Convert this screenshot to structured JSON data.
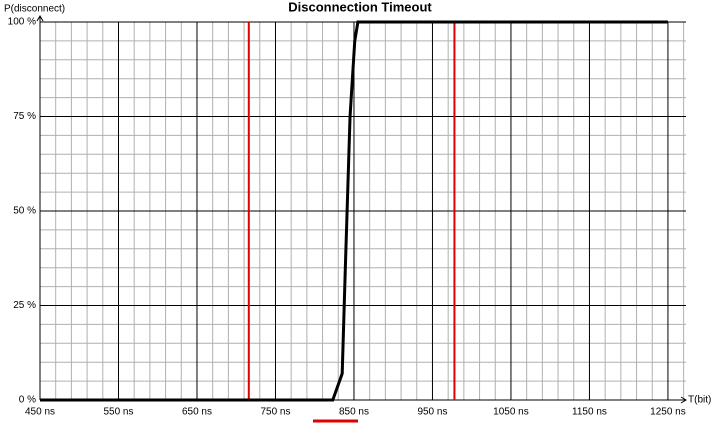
{
  "chart_data": {
    "type": "line",
    "title": "Disconnection Timeout",
    "y_label": "P(disconnect)",
    "x_label": "T(bit)",
    "x": [
      450,
      823,
      835,
      839,
      845,
      851,
      855,
      1250
    ],
    "series": [
      {
        "name": "P(disconnect)",
        "color": "#000000",
        "values": [
          0,
          0,
          7,
          35,
          75,
          95,
          100,
          100
        ]
      }
    ],
    "markers": [
      {
        "x": 716,
        "color": "#e00000"
      },
      {
        "x": 978,
        "color": "#e00000"
      }
    ],
    "xlim": [
      450,
      1273
    ],
    "ylim": [
      0,
      100
    ],
    "xticks": [
      {
        "value": 450,
        "label": "450 ns"
      },
      {
        "value": 550,
        "label": "550 ns"
      },
      {
        "value": 650,
        "label": "650 ns"
      },
      {
        "value": 750,
        "label": "750 ns"
      },
      {
        "value": 850,
        "label": "850 ns"
      },
      {
        "value": 950,
        "label": "950 ns"
      },
      {
        "value": 1050,
        "label": "1050 ns"
      },
      {
        "value": 1150,
        "label": "1150 ns"
      },
      {
        "value": 1250,
        "label": "1250 ns"
      }
    ],
    "yticks": [
      {
        "value": 0,
        "label": "0 %"
      },
      {
        "value": 25,
        "label": "25 %"
      },
      {
        "value": 50,
        "label": "50 %"
      },
      {
        "value": 75,
        "label": "75 %"
      },
      {
        "value": 100,
        "label": "100 %"
      }
    ],
    "grid": true
  }
}
